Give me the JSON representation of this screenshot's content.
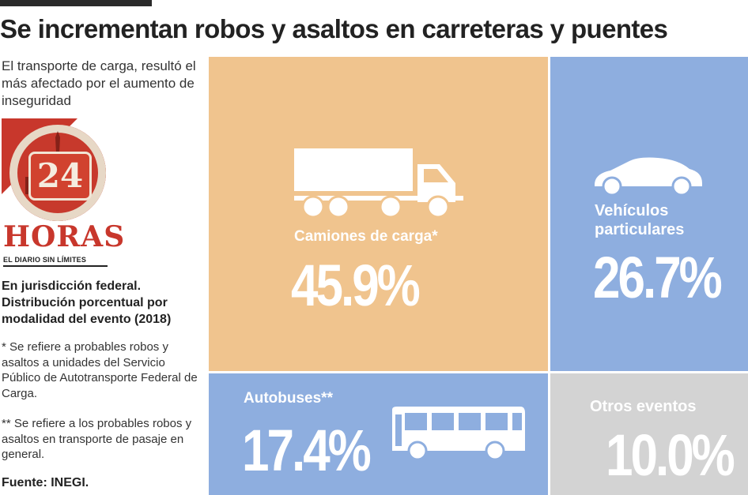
{
  "header": {
    "title": "Se incrementan robos y asaltos en carreteras y puentes",
    "subtitle": "El transporte de carga, resultó el más afectado por el aumento de inseguridad"
  },
  "logo": {
    "number": "24",
    "name": "HORAS",
    "tagline": "EL DIARIO SIN LÍMITES"
  },
  "notes": {
    "title": "En jurisdicción federal. Distribución porcentual por modalidad del evento (2018)",
    "note1": "* Se refiere a probables robos y asaltos a unidades del Servicio Público de Autotransporte Federal de Carga.",
    "note2": "** Se refiere a los probables robos y asaltos en transporte de pasaje en general.",
    "source": "Fuente: INEGI."
  },
  "colors": {
    "camiones": "#f0c48e",
    "vehiculos": "#8eaedf",
    "autobuses": "#8eaedf",
    "otros": "#d3d3d3",
    "logo_red": "#c8372c"
  },
  "chart_data": {
    "type": "treemap",
    "unit": "%",
    "categories": [
      "Camiones de carga*",
      "Vehículos particulares",
      "Autobuses**",
      "Otros eventos"
    ],
    "values": [
      45.9,
      26.7,
      17.4,
      10.0
    ],
    "labels": [
      "45.9%",
      "26.7%",
      "17.4%",
      "10.0%"
    ],
    "icons": [
      "truck-icon",
      "car-icon",
      null,
      "bus-icon"
    ]
  }
}
